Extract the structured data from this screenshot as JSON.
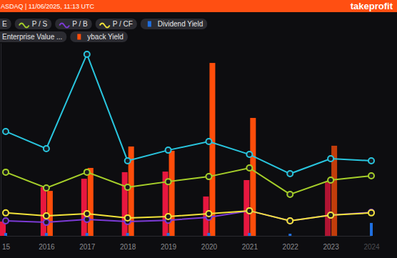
{
  "chart_data": {
    "type": "combo",
    "title": "ASDAQ | 11/06/2025, 11:13 UTC",
    "subtitle": "takeprofit",
    "categories": [
      "15",
      "2016",
      "2017",
      "2018",
      "2019",
      "2020",
      "2021",
      "2022",
      "2023",
      "2024"
    ],
    "ylim": [
      0,
      100
    ],
    "tick_labels": "x",
    "grid": false,
    "legend": "top-left",
    "series": [
      {
        "name": "E",
        "type": "line",
        "marker": "circle",
        "color": "#29c5de",
        "values": [
          54.1,
          45.2,
          94.1,
          38.9,
          44.4,
          48.9,
          42.2,
          32.2,
          40,
          38.9
        ]
      },
      {
        "name": "P / S",
        "type": "line",
        "marker": "circle",
        "color": "#a6cf2a",
        "values": [
          33,
          24.8,
          33,
          25.2,
          28.1,
          30.7,
          35.2,
          21.5,
          28.9,
          31.1
        ]
      },
      {
        "name": "P / B",
        "type": "line",
        "marker": "circle",
        "color": "#7c3bd6",
        "values": [
          7.8,
          7,
          8.5,
          7.4,
          8.1,
          9.6,
          13,
          7.8,
          10.7,
          12.2
        ]
      },
      {
        "name": "P / CF",
        "type": "line",
        "marker": "circle",
        "color": "#f2e33a",
        "values": [
          11.9,
          10.4,
          11.5,
          9.3,
          10,
          11.5,
          13,
          7.8,
          10.7,
          11.9
        ]
      },
      {
        "name": "Dividend Yield",
        "type": "bar",
        "color": "#1f6fe0",
        "values": [
          1.5,
          1.5,
          1.5,
          1.5,
          1.5,
          1.5,
          1.5,
          1.1,
          null,
          6.7
        ]
      },
      {
        "name": "Enterprise Value ...",
        "type": "bar",
        "color": "#e8173f",
        "values": [
          7.4,
          25.2,
          29.6,
          33,
          33.3,
          20.4,
          28.9,
          null,
          27.8,
          null
        ]
      },
      {
        "name": "yback Yield",
        "type": "bar",
        "color": "#ff4d0a",
        "values": [
          null,
          23.3,
          35.2,
          46.3,
          44.1,
          89.6,
          61.1,
          null,
          46.7,
          null
        ]
      }
    ]
  }
}
